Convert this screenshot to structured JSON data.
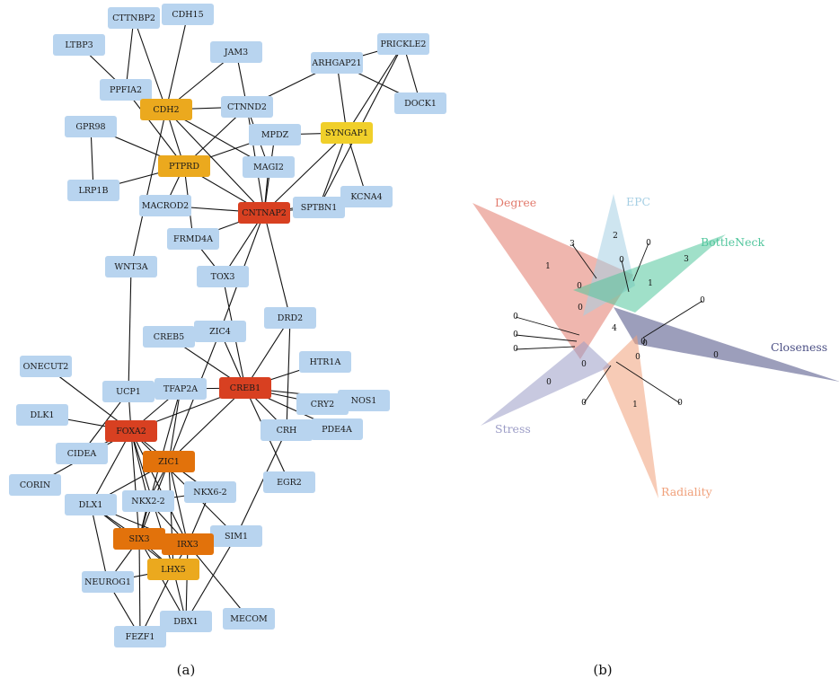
{
  "panel_a": {
    "caption": "(a)",
    "nodes": [
      {
        "id": "CTTNBP2",
        "cat": "normal"
      },
      {
        "id": "CDH15",
        "cat": "normal"
      },
      {
        "id": "LTBP3",
        "cat": "normal"
      },
      {
        "id": "JAM3",
        "cat": "normal"
      },
      {
        "id": "PRICKLE2",
        "cat": "normal"
      },
      {
        "id": "ARHGAP21",
        "cat": "normal"
      },
      {
        "id": "PPFIA2",
        "cat": "normal"
      },
      {
        "id": "DOCK1",
        "cat": "normal"
      },
      {
        "id": "CDH2",
        "cat": "orange"
      },
      {
        "id": "CTNND2",
        "cat": "normal"
      },
      {
        "id": "GPR98",
        "cat": "normal"
      },
      {
        "id": "SYNGAP1",
        "cat": "yellow"
      },
      {
        "id": "MPDZ",
        "cat": "normal"
      },
      {
        "id": "PTPRD",
        "cat": "orange"
      },
      {
        "id": "MAGI2",
        "cat": "normal"
      },
      {
        "id": "LRP1B",
        "cat": "normal"
      },
      {
        "id": "KCNA4",
        "cat": "normal"
      },
      {
        "id": "MACROD2",
        "cat": "normal"
      },
      {
        "id": "SPTBN1",
        "cat": "normal"
      },
      {
        "id": "CNTNAP2",
        "cat": "red"
      },
      {
        "id": "FRMD4A",
        "cat": "normal"
      },
      {
        "id": "WNT3A",
        "cat": "normal"
      },
      {
        "id": "TOX3",
        "cat": "normal"
      },
      {
        "id": "DRD2",
        "cat": "normal"
      },
      {
        "id": "CREB5",
        "cat": "normal"
      },
      {
        "id": "ZIC4",
        "cat": "normal"
      },
      {
        "id": "HTR1A",
        "cat": "normal"
      },
      {
        "id": "ONECUT2",
        "cat": "normal"
      },
      {
        "id": "UCP1",
        "cat": "normal"
      },
      {
        "id": "TFAP2A",
        "cat": "normal"
      },
      {
        "id": "CREB1",
        "cat": "red"
      },
      {
        "id": "NOS1",
        "cat": "normal"
      },
      {
        "id": "CRY2",
        "cat": "normal"
      },
      {
        "id": "DLK1",
        "cat": "normal"
      },
      {
        "id": "FOXA2",
        "cat": "red"
      },
      {
        "id": "CRH",
        "cat": "normal"
      },
      {
        "id": "CIDEA",
        "cat": "normal"
      },
      {
        "id": "ZIC1",
        "cat": "orange2"
      },
      {
        "id": "PDE4A",
        "cat": "normal"
      },
      {
        "id": "CORIN",
        "cat": "normal"
      },
      {
        "id": "EGR2",
        "cat": "normal"
      },
      {
        "id": "DLX1",
        "cat": "normal"
      },
      {
        "id": "NKX2-2",
        "cat": "normal"
      },
      {
        "id": "NKX6-2",
        "cat": "normal"
      },
      {
        "id": "SIM1",
        "cat": "normal"
      },
      {
        "id": "SIX3",
        "cat": "orange2"
      },
      {
        "id": "IRX3",
        "cat": "orange2"
      },
      {
        "id": "LHX5",
        "cat": "orange"
      },
      {
        "id": "NEUROG1",
        "cat": "normal"
      },
      {
        "id": "MECOM",
        "cat": "normal"
      },
      {
        "id": "DBX1",
        "cat": "normal"
      },
      {
        "id": "FEZF1",
        "cat": "normal"
      }
    ],
    "edges": [
      [
        "CTTNBP2",
        "PPFIA2"
      ],
      [
        "CTTNBP2",
        "CDH2"
      ],
      [
        "CDH15",
        "CDH2"
      ],
      [
        "LTBP3",
        "PPFIA2"
      ],
      [
        "PPFIA2",
        "CDH2"
      ],
      [
        "PPFIA2",
        "PTPRD"
      ],
      [
        "JAM3",
        "CDH2"
      ],
      [
        "JAM3",
        "CTNND2"
      ],
      [
        "CDH2",
        "CTNND2"
      ],
      [
        "CDH2",
        "PTPRD"
      ],
      [
        "CDH2",
        "MAGI2"
      ],
      [
        "CDH2",
        "CNTNAP2"
      ],
      [
        "CDH2",
        "WNT3A"
      ],
      [
        "CTNND2",
        "ARHGAP21"
      ],
      [
        "CTNND2",
        "MAGI2"
      ],
      [
        "CTNND2",
        "PTPRD"
      ],
      [
        "CTNND2",
        "CNTNAP2"
      ],
      [
        "ARHGAP21",
        "PRICKLE2"
      ],
      [
        "ARHGAP21",
        "DOCK1"
      ],
      [
        "ARHGAP21",
        "SYNGAP1"
      ],
      [
        "PRICKLE2",
        "DOCK1"
      ],
      [
        "PRICKLE2",
        "SYNGAP1"
      ],
      [
        "PRICKLE2",
        "SPTBN1"
      ],
      [
        "SYNGAP1",
        "MPDZ"
      ],
      [
        "SYNGAP1",
        "KCNA4"
      ],
      [
        "SYNGAP1",
        "SPTBN1"
      ],
      [
        "SYNGAP1",
        "CNTNAP2"
      ],
      [
        "MPDZ",
        "PTPRD"
      ],
      [
        "MPDZ",
        "CNTNAP2"
      ],
      [
        "GPR98",
        "PTPRD"
      ],
      [
        "GPR98",
        "LRP1B"
      ],
      [
        "LRP1B",
        "PTPRD"
      ],
      [
        "PTPRD",
        "MACROD2"
      ],
      [
        "PTPRD",
        "FRMD4A"
      ],
      [
        "PTPRD",
        "CNTNAP2"
      ],
      [
        "MACROD2",
        "CNTNAP2"
      ],
      [
        "MAGI2",
        "CNTNAP2"
      ],
      [
        "SPTBN1",
        "CNTNAP2"
      ],
      [
        "KCNA4",
        "CNTNAP2"
      ],
      [
        "CNTNAP2",
        "FRMD4A"
      ],
      [
        "CNTNAP2",
        "TOX3"
      ],
      [
        "CNTNAP2",
        "DRD2"
      ],
      [
        "CNTNAP2",
        "ZIC4"
      ],
      [
        "FRMD4A",
        "TOX3"
      ],
      [
        "TOX3",
        "CREB1"
      ],
      [
        "DRD2",
        "CREB1"
      ],
      [
        "DRD2",
        "CRH"
      ],
      [
        "WNT3A",
        "UCP1"
      ],
      [
        "CREB5",
        "CREB1"
      ],
      [
        "ZIC4",
        "ZIC1"
      ],
      [
        "ZIC4",
        "CREB1"
      ],
      [
        "HTR1A",
        "CREB1"
      ],
      [
        "CREB1",
        "CRY2"
      ],
      [
        "CREB1",
        "NOS1"
      ],
      [
        "CREB1",
        "CRH"
      ],
      [
        "CREB1",
        "PDE4A"
      ],
      [
        "CREB1",
        "EGR2"
      ],
      [
        "CREB1",
        "FOXA2"
      ],
      [
        "CREB1",
        "TFAP2A"
      ],
      [
        "CREB1",
        "ZIC1"
      ],
      [
        "ONECUT2",
        "FOXA2"
      ],
      [
        "UCP1",
        "FOXA2"
      ],
      [
        "UCP1",
        "CIDEA"
      ],
      [
        "DLK1",
        "FOXA2"
      ],
      [
        "CIDEA",
        "FOXA2"
      ],
      [
        "TFAP2A",
        "FOXA2"
      ],
      [
        "TFAP2A",
        "ZIC1"
      ],
      [
        "TFAP2A",
        "SIX3"
      ],
      [
        "FOXA2",
        "ZIC1"
      ],
      [
        "FOXA2",
        "CORIN"
      ],
      [
        "FOXA2",
        "DLX1"
      ],
      [
        "FOXA2",
        "NKX2-2"
      ],
      [
        "FOXA2",
        "SIX3"
      ],
      [
        "FOXA2",
        "IRX3"
      ],
      [
        "FOXA2",
        "LHX5"
      ],
      [
        "FOXA2",
        "SIM1"
      ],
      [
        "ZIC1",
        "NKX2-2"
      ],
      [
        "ZIC1",
        "SIX3"
      ],
      [
        "ZIC1",
        "IRX3"
      ],
      [
        "ZIC1",
        "DLX1"
      ],
      [
        "ZIC1",
        "NKX6-2"
      ],
      [
        "ZIC1",
        "LHX5"
      ],
      [
        "DLX1",
        "SIX3"
      ],
      [
        "DLX1",
        "IRX3"
      ],
      [
        "DLX1",
        "LHX5"
      ],
      [
        "DLX1",
        "NEUROG1"
      ],
      [
        "NKX2-2",
        "NKX6-2"
      ],
      [
        "NKX2-2",
        "SIX3"
      ],
      [
        "NKX2-2",
        "IRX3"
      ],
      [
        "NKX6-2",
        "IRX3"
      ],
      [
        "SIX3",
        "IRX3"
      ],
      [
        "SIX3",
        "LHX5"
      ],
      [
        "SIX3",
        "NEUROG1"
      ],
      [
        "SIX3",
        "FEZF1"
      ],
      [
        "SIX3",
        "SIM1"
      ],
      [
        "SIX3",
        "DBX1"
      ],
      [
        "IRX3",
        "LHX5"
      ],
      [
        "IRX3",
        "SIM1"
      ],
      [
        "IRX3",
        "MECOM"
      ],
      [
        "IRX3",
        "DBX1"
      ],
      [
        "LHX5",
        "NEUROG1"
      ],
      [
        "LHX5",
        "FEZF1"
      ],
      [
        "LHX5",
        "DBX1"
      ],
      [
        "NEUROG1",
        "FEZF1"
      ],
      [
        "SIM1",
        "CRH"
      ],
      [
        "SIM1",
        "DBX1"
      ]
    ],
    "colors": {
      "normal": "#b8d4ef",
      "orange": "#eba91e",
      "orange2": "#e2720b",
      "yellow": "#f0cf2a",
      "red": "#d84021"
    }
  },
  "panel_b": {
    "caption": "(b)",
    "sets": [
      {
        "name": "Degree",
        "color": "#e27a6c"
      },
      {
        "name": "EPC",
        "color": "#a6cfe4"
      },
      {
        "name": "BottleNeck",
        "color": "#52c69d"
      },
      {
        "name": "Closeness",
        "color": "#4b4f84"
      },
      {
        "name": "Radiality",
        "color": "#f0a07a"
      },
      {
        "name": "Stress",
        "color": "#9b9cc6"
      }
    ],
    "counts": [
      "2",
      "0",
      "0",
      "3",
      "3",
      "1",
      "0",
      "1",
      "0",
      "0",
      "0",
      "0",
      "0",
      "0",
      "0",
      "4",
      "0",
      "0",
      "0",
      "0",
      "0",
      "1",
      "0"
    ]
  }
}
